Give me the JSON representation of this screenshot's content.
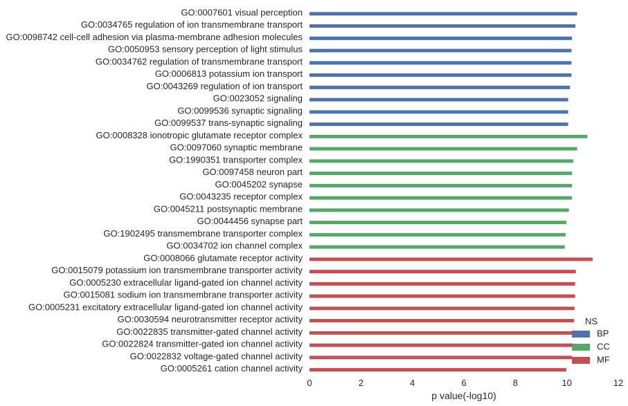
{
  "chart_data": {
    "type": "bar",
    "orientation": "horizontal",
    "xlabel": "p value(-log10)",
    "xlim": [
      0,
      12
    ],
    "xticks": [
      0,
      2,
      4,
      6,
      8,
      10,
      12
    ],
    "grid": false,
    "legend": {
      "title": "NS",
      "placement": "bottom-right"
    },
    "series": [
      {
        "name": "BP",
        "color": "#4c72b0"
      },
      {
        "name": "CC",
        "color": "#55a868"
      },
      {
        "name": "MF",
        "color": "#c44e52"
      }
    ],
    "bars": [
      {
        "label": "GO:0007601 visual perception",
        "value": 10.4,
        "series": "BP"
      },
      {
        "label": "GO:0034765 regulation of ion transmembrane transport",
        "value": 10.33,
        "series": "BP"
      },
      {
        "label": "GO:0098742 cell-cell adhesion via plasma-membrane adhesion molecules",
        "value": 10.2,
        "series": "BP"
      },
      {
        "label": "GO:0050953 sensory perception of light stimulus",
        "value": 10.18,
        "series": "BP"
      },
      {
        "label": "GO:0034762 regulation of transmembrane transport",
        "value": 10.18,
        "series": "BP"
      },
      {
        "label": "GO:0006813 potassium ion transport",
        "value": 10.18,
        "series": "BP"
      },
      {
        "label": "GO:0043269 regulation of ion transport",
        "value": 10.12,
        "series": "BP"
      },
      {
        "label": "GO:0023052 signaling",
        "value": 10.05,
        "series": "BP"
      },
      {
        "label": "GO:0099536 synaptic signaling",
        "value": 10.05,
        "series": "BP"
      },
      {
        "label": "GO:0099537 trans-synaptic signaling",
        "value": 10.05,
        "series": "BP"
      },
      {
        "label": "GO:0008328 ionotropic glutamate receptor complex",
        "value": 10.8,
        "series": "CC"
      },
      {
        "label": "GO:0097060 synaptic membrane",
        "value": 10.4,
        "series": "CC"
      },
      {
        "label": "GO:1990351 transporter complex",
        "value": 10.25,
        "series": "CC"
      },
      {
        "label": "GO:0097458 neuron part",
        "value": 10.2,
        "series": "CC"
      },
      {
        "label": "GO:0045202 synapse",
        "value": 10.2,
        "series": "CC"
      },
      {
        "label": "GO:0043235 receptor complex",
        "value": 10.2,
        "series": "CC"
      },
      {
        "label": "GO:0045211 postsynaptic membrane",
        "value": 10.08,
        "series": "CC"
      },
      {
        "label": "GO:0044456 synapse part",
        "value": 9.98,
        "series": "CC"
      },
      {
        "label": "GO:1902495 transmembrane transporter complex",
        "value": 9.95,
        "series": "CC"
      },
      {
        "label": "GO:0034702 ion channel complex",
        "value": 9.92,
        "series": "CC"
      },
      {
        "label": "GO:0008066 glutamate receptor activity",
        "value": 11.0,
        "series": "MF"
      },
      {
        "label": "GO:0015079 potassium ion transmembrane transporter activity",
        "value": 10.35,
        "series": "MF"
      },
      {
        "label": "GO:0005230 extracellular ligand-gated ion channel activity",
        "value": 10.32,
        "series": "MF"
      },
      {
        "label": "GO:0015081 sodium ion transmembrane transporter activity",
        "value": 10.32,
        "series": "MF"
      },
      {
        "label": "GO:0005231 excitatory extracellular ligand-gated ion channel activity",
        "value": 10.3,
        "series": "MF"
      },
      {
        "label": "GO:0030594 neurotransmitter receptor activity",
        "value": 10.28,
        "series": "MF"
      },
      {
        "label": "GO:0022835 transmitter-gated channel activity",
        "value": 10.25,
        "series": "MF"
      },
      {
        "label": "GO:0022824 transmitter-gated ion channel activity",
        "value": 10.25,
        "series": "MF"
      },
      {
        "label": "GO:0022832 voltage-gated channel activity",
        "value": 10.2,
        "series": "MF"
      },
      {
        "label": "GO:0005261 cation channel activity",
        "value": 9.98,
        "series": "MF"
      }
    ]
  }
}
